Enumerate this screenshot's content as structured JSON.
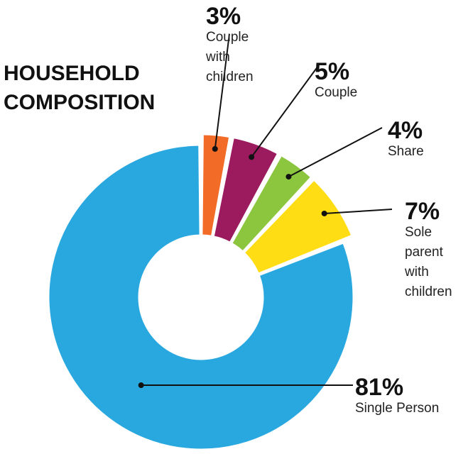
{
  "chart_data": {
    "type": "pie",
    "title": [
      "HOUSEHOLD",
      "COMPOSITION"
    ],
    "donut": true,
    "categories": [
      "Couple with children",
      "Couple",
      "Share",
      "Sole parent with children",
      "Single Person"
    ],
    "values": [
      3,
      5,
      4,
      7,
      81
    ],
    "percent_labels": [
      "3%",
      "5%",
      "4%",
      "7%",
      "81%"
    ],
    "label_lines": [
      [
        "Couple",
        "with",
        "children"
      ],
      [
        "Couple"
      ],
      [
        "Share"
      ],
      [
        "Sole",
        "parent",
        "with",
        "children"
      ],
      [
        "Single Person"
      ]
    ],
    "colors": [
      "#F26B27",
      "#9B1B5E",
      "#8CC63F",
      "#FFDD15",
      "#29A8E0"
    ],
    "exploded": [
      true,
      true,
      true,
      true,
      false
    ],
    "legend": "none"
  }
}
